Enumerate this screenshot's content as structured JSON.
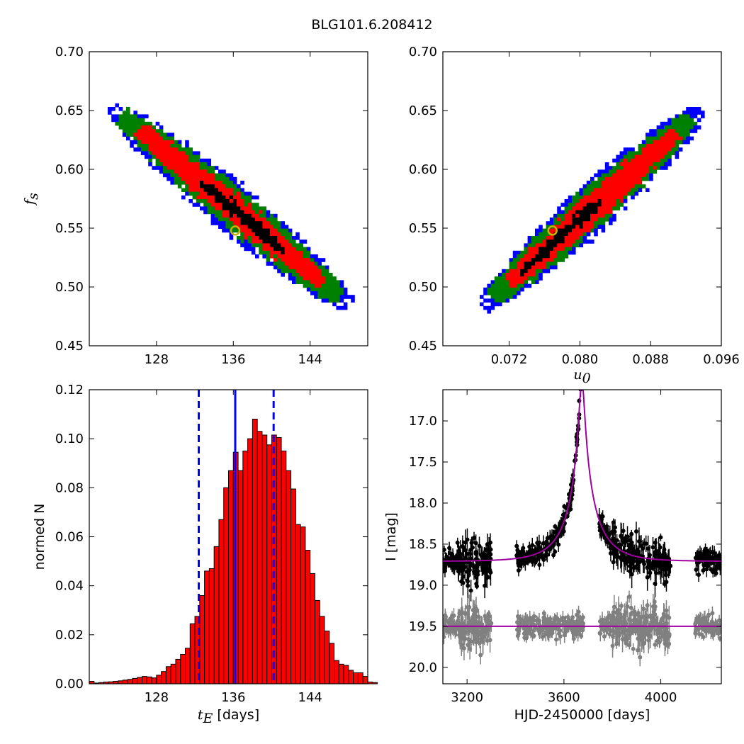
{
  "figure_title": "BLG101.6.208412",
  "chart_data": [
    {
      "type": "heatmap",
      "panel": "top-left",
      "xlabel": "",
      "ylabel": "f_s",
      "xlim": [
        121,
        150
      ],
      "ylim": [
        0.45,
        0.7
      ],
      "x_ticks": [
        128,
        136,
        144
      ],
      "y_ticks": [
        0.45,
        0.5,
        0.55,
        0.6,
        0.65,
        0.7
      ],
      "grid": false,
      "colors": {
        "outer": "#0000ff",
        "mid": "#008000",
        "inner": "#ff0000",
        "core": "#000000",
        "best_fit_marker": "#c8b400"
      },
      "best_fit": {
        "x": 136.2,
        "y": 0.548
      },
      "ridge": {
        "x_start": 123.5,
        "y_start": 0.652,
        "x_end": 148,
        "y_end": 0.485
      }
    },
    {
      "type": "heatmap",
      "panel": "top-right",
      "xlabel": "u_0",
      "ylabel": "",
      "xlim": [
        0.0645,
        0.096
      ],
      "ylim": [
        0.45,
        0.7
      ],
      "x_ticks": [
        0.072,
        0.08,
        0.088,
        0.096
      ],
      "y_ticks": [
        0.45,
        0.5,
        0.55,
        0.6,
        0.65,
        0.7
      ],
      "grid": false,
      "colors": {
        "outer": "#0000ff",
        "mid": "#008000",
        "inner": "#ff0000",
        "core": "#000000",
        "best_fit_marker": "#c8b400"
      },
      "best_fit": {
        "x": 0.0769,
        "y": 0.548
      },
      "ridge": {
        "x_start": 0.0693,
        "y_start": 0.485,
        "x_end": 0.0935,
        "y_end": 0.649
      }
    },
    {
      "type": "bar",
      "panel": "bottom-left",
      "xlabel": "t_E [days]",
      "ylabel": "normed N",
      "xlim": [
        121,
        150
      ],
      "ylim": [
        0,
        0.12
      ],
      "x_ticks": [
        128,
        144
      ],
      "x_ticks_all": [
        128,
        136,
        144
      ],
      "y_ticks": [
        0.0,
        0.02,
        0.04,
        0.06,
        0.08,
        0.1,
        0.12
      ],
      "bar_color": "#ff0000",
      "bin_start": 121.0,
      "bin_width": 0.5,
      "values": [
        0.001,
        0.0003,
        0.0005,
        0.0007,
        0.0008,
        0.001,
        0.0012,
        0.0015,
        0.0018,
        0.0022,
        0.0026,
        0.003,
        0.0028,
        0.0024,
        0.0035,
        0.005,
        0.007,
        0.008,
        0.01,
        0.012,
        0.0145,
        0.0245,
        0.0275,
        0.036,
        0.046,
        0.047,
        0.056,
        0.067,
        0.08,
        0.087,
        0.0945,
        0.087,
        0.095,
        0.1,
        0.108,
        0.103,
        0.1015,
        0.0975,
        0.1015,
        0.1005,
        0.095,
        0.087,
        0.0795,
        0.065,
        0.064,
        0.0545,
        0.045,
        0.034,
        0.0275,
        0.0215,
        0.0165,
        0.0095,
        0.008,
        0.0075,
        0.0055,
        0.0045,
        0.0045,
        0.003,
        0.0007,
        0.0005
      ],
      "lines": [
        {
          "x": 136.2,
          "style": "solid",
          "color": "#0000ff"
        },
        {
          "x": 132.4,
          "style": "dashed",
          "color": "#0000ff"
        },
        {
          "x": 140.2,
          "style": "dashed",
          "color": "#0000ff"
        }
      ]
    },
    {
      "type": "scatter",
      "panel": "bottom-right",
      "xlabel": "HJD-2450000 [days]",
      "ylabel": "I [mag]",
      "xlim": [
        3100,
        4250
      ],
      "ylim": [
        20.2,
        16.62
      ],
      "x_ticks": [
        3200,
        3600,
        4000
      ],
      "y_ticks": [
        17.0,
        17.5,
        18.0,
        18.5,
        19.0,
        19.5,
        20.0
      ],
      "grid": false,
      "model": {
        "name": "",
        "color": "#a000a0",
        "baseline": 18.71,
        "peak_time": 3674,
        "t_E": 136.2,
        "u_0": 0.0769,
        "f_s": 0.548
      },
      "residual_baseline": 19.5,
      "series": [
        {
          "name": "",
          "color": "#000000",
          "segments": [
            [
              3100,
              3300
            ],
            [
              3405,
              3680
            ],
            [
              3745,
              4040
            ],
            [
              4140,
              4250
            ]
          ],
          "scatter_mag": 0.06
        },
        {
          "name": "",
          "color": "#808080",
          "segments": [
            [
              3100,
              3300
            ],
            [
              3405,
              3680
            ],
            [
              3745,
              4040
            ],
            [
              4140,
              4250
            ]
          ],
          "scatter_mag": 0.06
        }
      ]
    }
  ]
}
